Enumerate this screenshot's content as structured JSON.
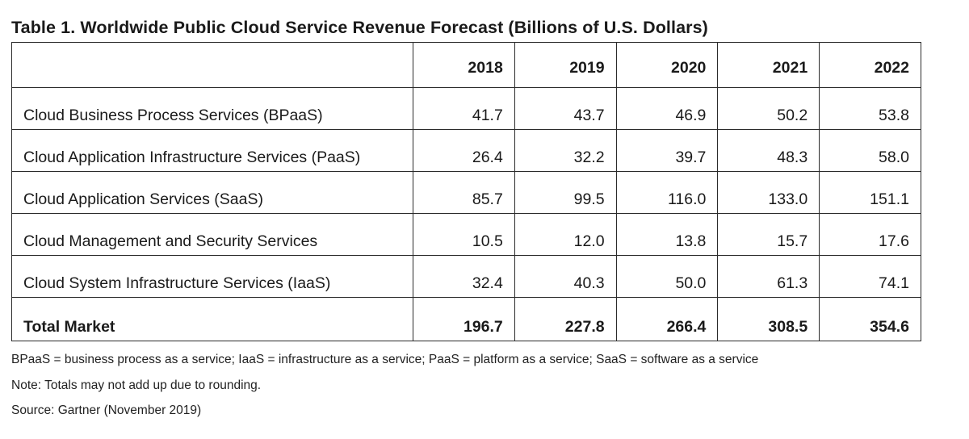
{
  "title": "Table 1. Worldwide Public Cloud Service Revenue Forecast (Billions of U.S. Dollars)",
  "chart_data": {
    "type": "table",
    "title": "Table 1. Worldwide Public Cloud Service Revenue Forecast (Billions of U.S. Dollars)",
    "columns": [
      "2018",
      "2019",
      "2020",
      "2021",
      "2022"
    ],
    "rows": [
      {
        "label": "Cloud Business Process Services (BPaaS)",
        "values": [
          "41.7",
          "43.7",
          "46.9",
          "50.2",
          "53.8"
        ]
      },
      {
        "label": "Cloud Application Infrastructure Services (PaaS)",
        "values": [
          "26.4",
          "32.2",
          "39.7",
          "48.3",
          "58.0"
        ]
      },
      {
        "label": "Cloud Application Services (SaaS)",
        "values": [
          "85.7",
          "99.5",
          "116.0",
          "133.0",
          "151.1"
        ]
      },
      {
        "label": "Cloud Management and Security Services",
        "values": [
          "10.5",
          "12.0",
          "13.8",
          "15.7",
          "17.6"
        ]
      },
      {
        "label": "Cloud System Infrastructure Services (IaaS)",
        "values": [
          "32.4",
          "40.3",
          "50.0",
          "61.3",
          "74.1"
        ]
      }
    ],
    "total": {
      "label": "Total Market",
      "values": [
        "196.7",
        "227.8",
        "266.4",
        "308.5",
        "354.6"
      ]
    }
  },
  "notes": {
    "abbreviations": "BPaaS = business process as a service; IaaS = infrastructure as a service; PaaS = platform as a service; SaaS = software as a service",
    "rounding": "Note: Totals may not add up due to rounding.",
    "source": "Source: Gartner (November 2019)"
  }
}
